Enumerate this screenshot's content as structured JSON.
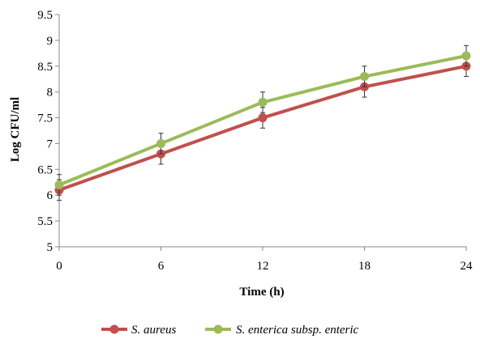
{
  "chart_data": {
    "type": "line",
    "xlabel": "Time (h)",
    "ylabel": "Log CFU/ml",
    "x": [
      0,
      6,
      12,
      18,
      24
    ],
    "xticks": [
      "0",
      "6",
      "12",
      "18",
      "24"
    ],
    "ylim": [
      5,
      9.5
    ],
    "yticks": [
      "5",
      "5.5",
      "6",
      "6.5",
      "7",
      "7.5",
      "8",
      "8.5",
      "9",
      "9.5"
    ],
    "grid": false,
    "legend_position": "bottom",
    "series": [
      {
        "name": "S. aureus",
        "color": "#c0504d",
        "values": [
          6.1,
          6.8,
          7.5,
          8.1,
          8.5
        ],
        "error": [
          0.2,
          0.2,
          0.2,
          0.2,
          0.2
        ]
      },
      {
        "name": "S. enterica subsp. enteric",
        "color": "#9bbb59",
        "values": [
          6.2,
          7.0,
          7.8,
          8.3,
          8.7
        ],
        "error": [
          0.2,
          0.2,
          0.2,
          0.2,
          0.2
        ]
      }
    ]
  }
}
